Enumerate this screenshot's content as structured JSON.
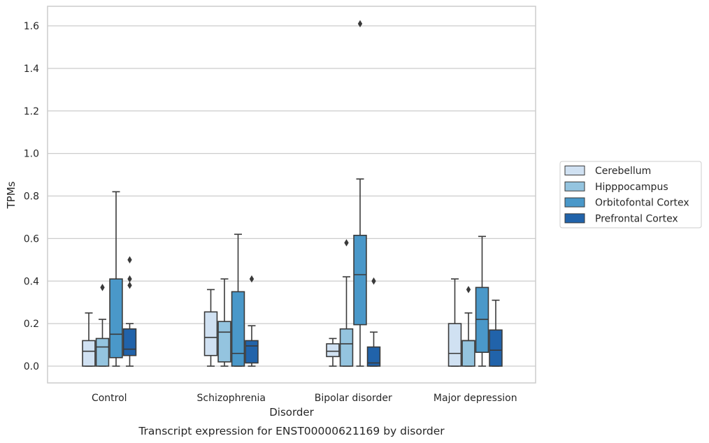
{
  "chart_data": {
    "type": "box",
    "caption": "Transcript expression for ENST00000621169 by disorder",
    "xlabel": "Disorder",
    "ylabel": "TPMs",
    "ylim": [
      -0.08,
      1.69
    ],
    "yticks": [
      0.0,
      0.2,
      0.4,
      0.6,
      0.8,
      1.0,
      1.2,
      1.4,
      1.6
    ],
    "ytick_labels": [
      "0.0",
      "0.2",
      "0.4",
      "0.6",
      "0.8",
      "1.0",
      "1.2",
      "1.4",
      "1.6"
    ],
    "grid": true,
    "legend_position": "right",
    "categories": [
      "Control",
      "Schizophrenia",
      "Bipolar disorder",
      "Major depression"
    ],
    "series": [
      {
        "name": "Cerebellum",
        "color": "#d0e1f2",
        "boxes": [
          {
            "whislo": 0.0,
            "q1": 0.0,
            "med": 0.07,
            "q3": 0.12,
            "whishi": 0.25,
            "fliers": []
          },
          {
            "whislo": 0.0,
            "q1": 0.05,
            "med": 0.135,
            "q3": 0.255,
            "whishi": 0.36,
            "fliers": []
          },
          {
            "whislo": 0.0,
            "q1": 0.045,
            "med": 0.07,
            "q3": 0.105,
            "whishi": 0.13,
            "fliers": []
          },
          {
            "whislo": 0.0,
            "q1": 0.0,
            "med": 0.06,
            "q3": 0.2,
            "whishi": 0.41,
            "fliers": []
          }
        ]
      },
      {
        "name": "Hipppocampus",
        "color": "#94c4df",
        "boxes": [
          {
            "whislo": 0.0,
            "q1": 0.0,
            "med": 0.09,
            "q3": 0.13,
            "whishi": 0.22,
            "fliers": [
              0.37
            ]
          },
          {
            "whislo": 0.0,
            "q1": 0.02,
            "med": 0.16,
            "q3": 0.21,
            "whishi": 0.41,
            "fliers": []
          },
          {
            "whislo": 0.0,
            "q1": 0.0,
            "med": 0.105,
            "q3": 0.175,
            "whishi": 0.42,
            "fliers": [
              0.58
            ]
          },
          {
            "whislo": 0.0,
            "q1": 0.0,
            "med": 0.12,
            "q3": 0.12,
            "whishi": 0.25,
            "fliers": [
              0.36
            ]
          }
        ]
      },
      {
        "name": "Orbitofontal Cortex",
        "color": "#4a98c9",
        "boxes": [
          {
            "whislo": 0.0,
            "q1": 0.04,
            "med": 0.15,
            "q3": 0.41,
            "whishi": 0.82,
            "fliers": []
          },
          {
            "whislo": 0.0,
            "q1": 0.0,
            "med": 0.06,
            "q3": 0.35,
            "whishi": 0.62,
            "fliers": []
          },
          {
            "whislo": 0.0,
            "q1": 0.195,
            "med": 0.43,
            "q3": 0.615,
            "whishi": 0.88,
            "fliers": [
              1.61
            ]
          },
          {
            "whislo": 0.0,
            "q1": 0.065,
            "med": 0.22,
            "q3": 0.37,
            "whishi": 0.61,
            "fliers": []
          }
        ]
      },
      {
        "name": "Prefrontal Cortex",
        "color": "#2163aa",
        "boxes": [
          {
            "whislo": 0.0,
            "q1": 0.05,
            "med": 0.08,
            "q3": 0.175,
            "whishi": 0.2,
            "fliers": [
              0.38,
              0.41,
              0.5
            ]
          },
          {
            "whislo": 0.0,
            "q1": 0.015,
            "med": 0.095,
            "q3": 0.12,
            "whishi": 0.19,
            "fliers": [
              0.41
            ]
          },
          {
            "whislo": 0.0,
            "q1": 0.0,
            "med": 0.015,
            "q3": 0.09,
            "whishi": 0.16,
            "fliers": [
              0.4
            ]
          },
          {
            "whislo": 0.0,
            "q1": 0.0,
            "med": 0.075,
            "q3": 0.17,
            "whishi": 0.31,
            "fliers": []
          }
        ]
      }
    ]
  }
}
